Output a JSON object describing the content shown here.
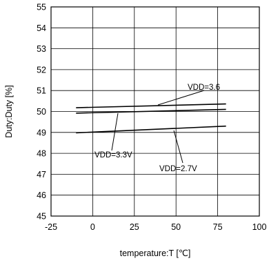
{
  "chart_data": {
    "type": "line",
    "xlabel": "temperature:T [℃]",
    "ylabel": "Duty:Duty [%]",
    "xlim": [
      -25,
      100
    ],
    "ylim": [
      45,
      55
    ],
    "xticks": [
      -25,
      0,
      25,
      50,
      75,
      100
    ],
    "yticks": [
      45,
      46,
      47,
      48,
      49,
      50,
      51,
      52,
      53,
      54,
      55
    ],
    "grid": true,
    "series": [
      {
        "name": "VDD=3.6",
        "x": [
          -10,
          80
        ],
        "y": [
          50.18,
          50.36
        ]
      },
      {
        "name": "VDD=3.3V",
        "x": [
          -10,
          80
        ],
        "y": [
          49.92,
          50.1
        ]
      },
      {
        "name": "VDD=2.7V",
        "x": [
          -10,
          80
        ],
        "y": [
          48.98,
          49.3
        ]
      }
    ],
    "annotations": [
      {
        "text": "VDD=3.6",
        "series": 0
      },
      {
        "text": "VDD=3.3V",
        "series": 1
      },
      {
        "text": "VDD=2.7V",
        "series": 2
      }
    ]
  }
}
